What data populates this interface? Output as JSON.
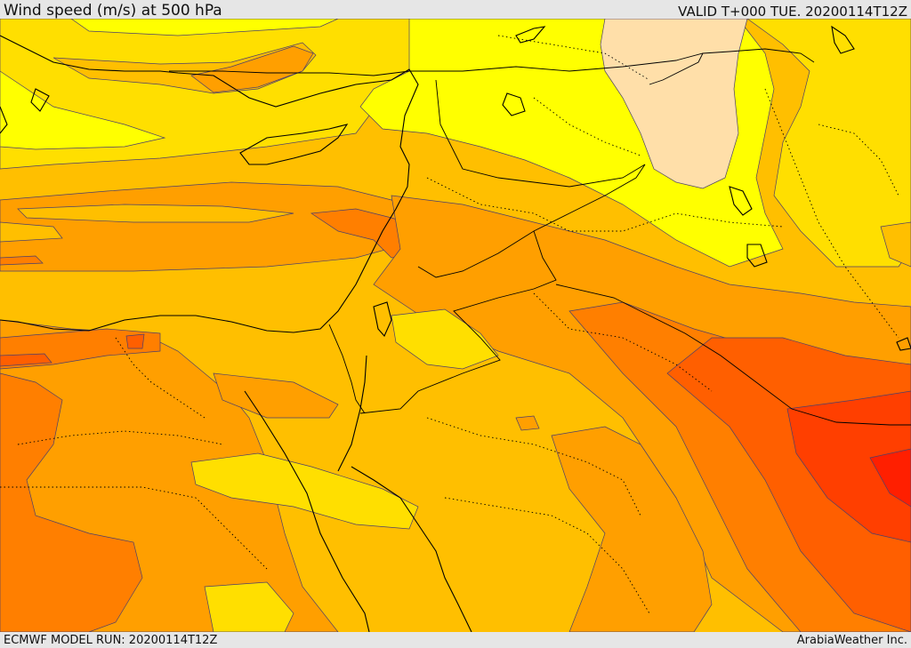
{
  "header": {
    "title": "Wind speed (m/s) at 500 hPa",
    "valid": "VALID T+000 TUE. 20200114T12Z"
  },
  "footer": {
    "model_run": "ECMWF MODEL RUN: 20200114T12Z",
    "credit": "ArabiaWeather Inc."
  },
  "colors": {
    "bg_band": "#e6e6e6",
    "speed_lightest": "#ffdfa9",
    "speed_yellow": "#ffff00",
    "speed_gold": "#ffdf00",
    "speed_amber": "#ffbf00",
    "speed_orange": "#ff9f00",
    "speed_dark_orange": "#ff7f00",
    "speed_red_orange": "#ff5f00",
    "speed_red": "#ff3f00",
    "contour": "#4b3f6b",
    "border": "#000000"
  }
}
